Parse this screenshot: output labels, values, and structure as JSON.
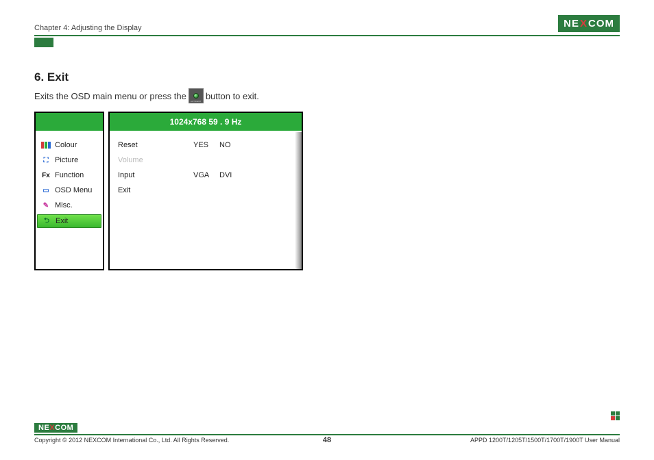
{
  "header": {
    "chapter": "Chapter 4: Adjusting the Display",
    "logo_text_1": "NE",
    "logo_x": "X",
    "logo_text_2": "COM"
  },
  "section": {
    "title": "6. Exit",
    "desc_before": "Exits the OSD main menu or press the",
    "desc_after": "button to exit.",
    "auto_label": "AUTO/EXIT"
  },
  "osd": {
    "resolution_line": "1024x768  59  . 9 Hz",
    "menu": [
      {
        "label": "Colour",
        "icon_colors": [
          "#d43c3c",
          "#2baa3a",
          "#2a6ad4"
        ],
        "selected": false
      },
      {
        "label": "Picture",
        "icon_text": "⛶",
        "icon_color": "#2a6ad4",
        "selected": false
      },
      {
        "label": "Function",
        "icon_text": "Fx",
        "icon_color": "#111",
        "selected": false
      },
      {
        "label": "OSD Menu",
        "icon_text": "▭",
        "icon_color": "#2a6ad4",
        "selected": false
      },
      {
        "label": "Misc.",
        "icon_text": "✎",
        "icon_color": "#c83aa0",
        "selected": false
      },
      {
        "label": "Exit",
        "icon_text": "⮌",
        "icon_color": "#0a6a2a",
        "selected": true
      }
    ],
    "rows": [
      {
        "label": "Reset",
        "opt1": "YES",
        "opt2": "NO",
        "disabled": false
      },
      {
        "label": "Volume",
        "opt1": "",
        "opt2": "",
        "disabled": true
      },
      {
        "label": "Input",
        "opt1": "VGA",
        "opt2": "DVI",
        "disabled": false
      },
      {
        "label": "Exit",
        "opt1": "",
        "opt2": "",
        "disabled": false
      }
    ]
  },
  "footer": {
    "copyright": "Copyright © 2012 NEXCOM International Co., Ltd. All Rights Reserved.",
    "page": "48",
    "manual": "APPD 1200T/1205T/1500T/1700T/1900T User Manual",
    "logo_text_1": "NE",
    "logo_x": "X",
    "logo_text_2": "COM"
  },
  "colors": {
    "brand_green": "#2c7c3f",
    "osd_green": "#2baa3a",
    "brand_red": "#d43c3c"
  }
}
